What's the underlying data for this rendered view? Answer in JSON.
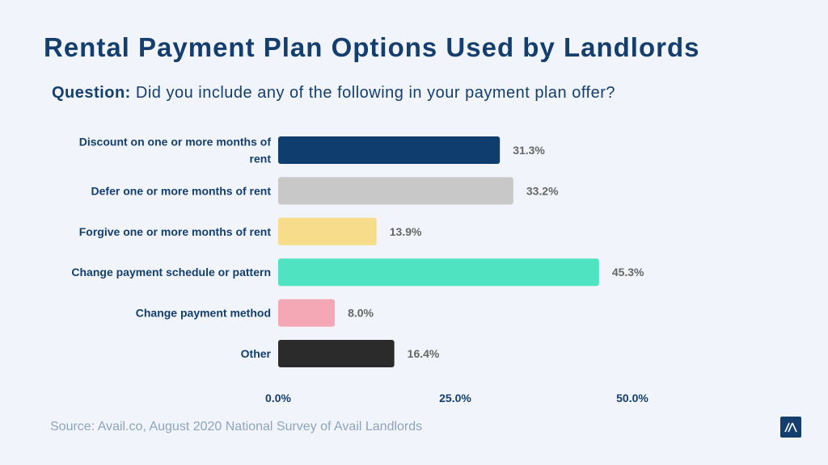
{
  "chart_data": {
    "type": "bar",
    "orientation": "horizontal",
    "title": "Rental Payment Plan Options Used by Landlords",
    "subtitle_label": "Question:",
    "subtitle": "Did you include any of the following in your payment plan offer?",
    "categories": [
      "Discount on one or more months of rent",
      "Defer one or more months of rent",
      "Forgive one or more months of rent",
      "Change payment schedule or pattern",
      "Change payment method",
      "Other"
    ],
    "values": [
      31.3,
      33.2,
      13.9,
      45.3,
      8.0,
      16.4
    ],
    "data_labels": [
      "31.3%",
      "33.2%",
      "13.9%",
      "45.3%",
      "8.0%",
      "16.4%"
    ],
    "colors": [
      "#0f3d6e",
      "#c8c8c8",
      "#f7dd8b",
      "#50e3c2",
      "#f4a7b4",
      "#2b2b2b"
    ],
    "xlim": [
      0,
      50
    ],
    "xticks": [
      "0.0%",
      "25.0%",
      "50.0%"
    ],
    "xtick_values": [
      0,
      25,
      50
    ],
    "grid": false,
    "xlabel": "",
    "ylabel": ""
  },
  "source": "Source: Avail.co, August 2020 National Survey of Avail Landlords",
  "logo": "Avail"
}
